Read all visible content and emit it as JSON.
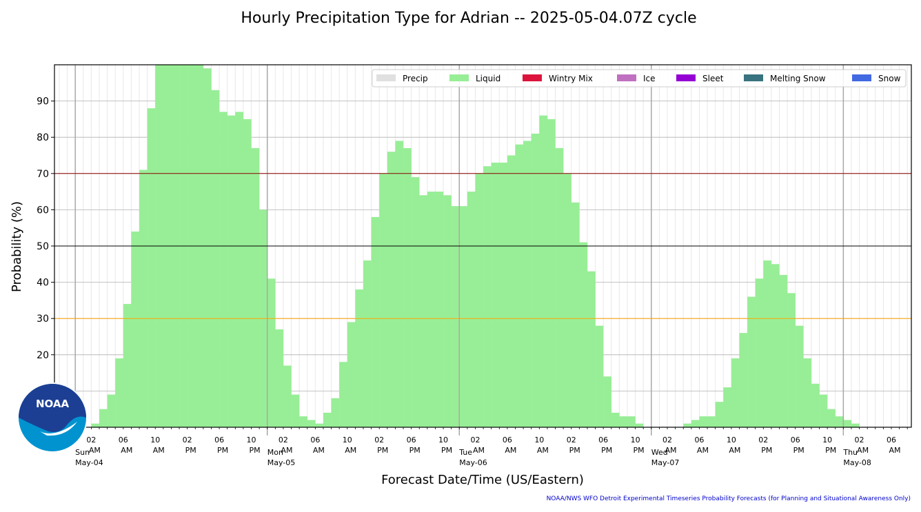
{
  "chart_data": {
    "type": "bar",
    "title": "Hourly Precipitation Type for Adrian -- 2025-05-04.07Z cycle",
    "xlabel": "Forecast Date/Time (US/Eastern)",
    "ylabel": "Probability (%)",
    "ylim": [
      0,
      100
    ],
    "yticks": [
      20,
      30,
      40,
      50,
      60,
      70,
      80,
      90
    ],
    "reference_lines": [
      {
        "value": 30,
        "color": "#ffa500"
      },
      {
        "value": 50,
        "color": "#000000"
      },
      {
        "value": 70,
        "color": "#8b0000"
      }
    ],
    "grid": true,
    "legend_position": "top-right",
    "legend": [
      {
        "label": "Precip",
        "color": "#e0e0e0"
      },
      {
        "label": "Liquid",
        "color": "#98ee96"
      },
      {
        "label": "Wintry Mix",
        "color": "#dc143c"
      },
      {
        "label": "Ice",
        "color": "#c070c0"
      },
      {
        "label": "Sleet",
        "color": "#9400d3"
      },
      {
        "label": "Melting Snow",
        "color": "#38737f"
      },
      {
        "label": "Snow",
        "color": "#4169e1"
      }
    ],
    "x_tick_labels": [
      {
        "hour": 2,
        "time": "02",
        "ampm": "AM",
        "day": "Sun",
        "date": "May-04"
      },
      {
        "hour": 6,
        "time": "06",
        "ampm": "AM"
      },
      {
        "hour": 10,
        "time": "10",
        "ampm": "AM"
      },
      {
        "hour": 14,
        "time": "02",
        "ampm": "PM"
      },
      {
        "hour": 18,
        "time": "06",
        "ampm": "PM"
      },
      {
        "hour": 22,
        "time": "10",
        "ampm": "PM"
      },
      {
        "hour": 26,
        "time": "02",
        "ampm": "AM",
        "day": "Mon",
        "date": "May-05"
      },
      {
        "hour": 30,
        "time": "06",
        "ampm": "AM"
      },
      {
        "hour": 34,
        "time": "10",
        "ampm": "AM"
      },
      {
        "hour": 38,
        "time": "02",
        "ampm": "PM"
      },
      {
        "hour": 42,
        "time": "06",
        "ampm": "PM"
      },
      {
        "hour": 46,
        "time": "10",
        "ampm": "PM"
      },
      {
        "hour": 50,
        "time": "02",
        "ampm": "AM",
        "day": "Tue",
        "date": "May-06"
      },
      {
        "hour": 54,
        "time": "06",
        "ampm": "AM"
      },
      {
        "hour": 58,
        "time": "10",
        "ampm": "AM"
      },
      {
        "hour": 62,
        "time": "02",
        "ampm": "PM"
      },
      {
        "hour": 66,
        "time": "06",
        "ampm": "PM"
      },
      {
        "hour": 70,
        "time": "10",
        "ampm": "PM"
      },
      {
        "hour": 74,
        "time": "02",
        "ampm": "AM",
        "day": "Wed",
        "date": "May-07"
      },
      {
        "hour": 78,
        "time": "06",
        "ampm": "AM"
      },
      {
        "hour": 82,
        "time": "10",
        "ampm": "AM"
      },
      {
        "hour": 86,
        "time": "02",
        "ampm": "PM"
      },
      {
        "hour": 90,
        "time": "06",
        "ampm": "PM"
      },
      {
        "hour": 94,
        "time": "10",
        "ampm": "PM"
      },
      {
        "hour": 98,
        "time": "02",
        "ampm": "AM",
        "day": "Thu",
        "date": "May-08"
      },
      {
        "hour": 102,
        "time": "06",
        "ampm": "AM"
      }
    ],
    "day_boundaries": [
      0,
      24,
      48,
      72,
      96
    ],
    "x_start_hour": -2.6,
    "x_end_hour": 104.5,
    "first_bar_hour": 2,
    "series": [
      {
        "name": "Liquid",
        "color": "#98ee96",
        "values": [
          1,
          5,
          9,
          19,
          34,
          54,
          71,
          88,
          100,
          100,
          100,
          100,
          100,
          100,
          99,
          93,
          87,
          86,
          87,
          85,
          77,
          60,
          41,
          27,
          17,
          9,
          3,
          2,
          1,
          4,
          8,
          18,
          29,
          38,
          46,
          58,
          70,
          76,
          79,
          77,
          69,
          64,
          65,
          65,
          64,
          61,
          61,
          65,
          70,
          72,
          73,
          73,
          75,
          78,
          79,
          81,
          86,
          85,
          77,
          70,
          62,
          51,
          43,
          28,
          14,
          4,
          3,
          3,
          1,
          0,
          0,
          0,
          0,
          0,
          1,
          2,
          3,
          3,
          7,
          11,
          19,
          26,
          36,
          41,
          46,
          45,
          42,
          37,
          28,
          19,
          12,
          9,
          5,
          3,
          2,
          1,
          0,
          0,
          0
        ]
      },
      {
        "name": "Precip",
        "color": "#e0e0e0",
        "values": [
          1,
          5,
          9,
          19,
          34,
          54,
          71,
          88,
          100,
          100,
          100,
          100,
          100,
          100,
          99,
          93,
          87,
          86,
          87,
          85,
          77,
          60,
          41,
          27,
          17,
          9,
          3,
          2,
          1,
          4,
          8,
          18,
          29,
          38,
          46,
          58,
          70,
          76,
          79,
          77,
          69,
          64,
          65,
          65,
          64,
          61,
          61,
          65,
          70,
          72,
          73,
          73,
          75,
          78,
          79,
          81,
          86,
          85,
          77,
          70,
          62,
          51,
          43,
          28,
          14,
          4,
          3,
          3,
          1,
          0,
          0,
          0,
          0,
          0,
          1,
          2,
          3,
          3,
          7,
          11,
          19,
          26,
          36,
          41,
          46,
          45,
          42,
          37,
          28,
          19,
          12,
          9,
          5,
          3,
          2,
          1,
          0,
          0,
          0
        ]
      }
    ]
  },
  "credit": "NOAA/NWS WFO Detroit Experimental Timeseries Probability Forecasts (for Planning and Situational Awareness Only)",
  "logo": {
    "text": "NOAA",
    "colors": {
      "dark": "#1c3f94",
      "light": "#0093d0"
    }
  }
}
